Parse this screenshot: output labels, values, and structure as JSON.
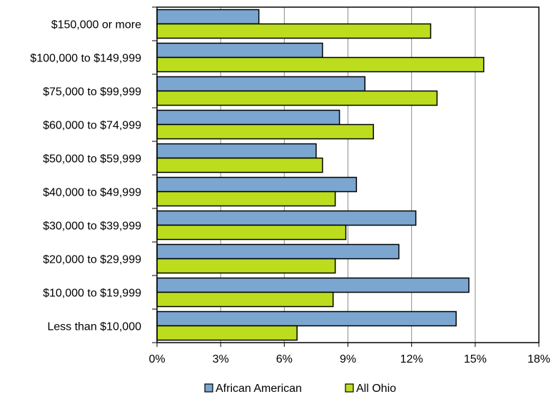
{
  "chart_data": {
    "type": "bar",
    "orientation": "horizontal",
    "categories": [
      "$150,000 or more",
      "$100,000 to $149,999",
      "$75,000 to $99,999",
      "$60,000 to $74,999",
      "$50,000 to $59,999",
      "$40,000 to $49,999",
      "$30,000 to $39,999",
      "$20,000 to $29,999",
      "$10,000 to $19,999",
      "Less than $10,000"
    ],
    "series": [
      {
        "name": "African American",
        "color": "#7aa6d0",
        "values": [
          4.8,
          7.8,
          9.8,
          8.6,
          7.5,
          9.4,
          12.2,
          11.4,
          14.7,
          14.1
        ]
      },
      {
        "name": "All Ohio",
        "color": "#bcdd1e",
        "values": [
          12.9,
          15.4,
          13.2,
          10.2,
          7.8,
          8.4,
          8.9,
          8.4,
          8.3,
          6.6
        ]
      }
    ],
    "xlim": [
      0,
      18
    ],
    "xticks": [
      0,
      3,
      6,
      9,
      12,
      15,
      18
    ],
    "tick_suffix": "%",
    "grid": "vertical",
    "legend": "bottom"
  }
}
